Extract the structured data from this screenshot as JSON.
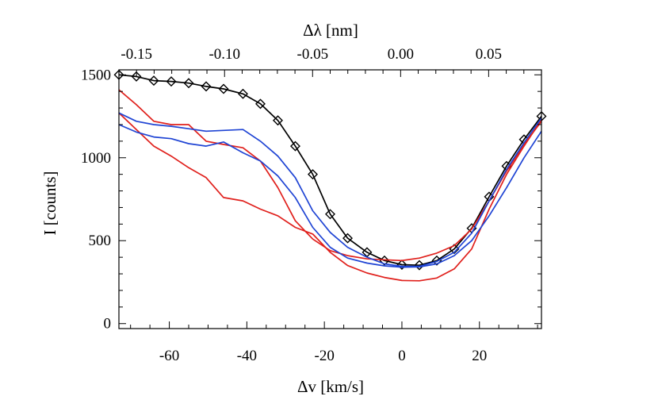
{
  "chart_data": {
    "type": "line",
    "title": "",
    "xlabel": "Δv [km/s]",
    "ylabel": "I [counts]",
    "x2label": "Δλ [nm]",
    "xlim": [
      -73,
      36
    ],
    "ylim": [
      -30,
      1530
    ],
    "x2lim": [
      -0.16,
      0.08
    ],
    "x_ticks": [
      -60,
      -40,
      -20,
      0,
      20
    ],
    "x_tick_labels": [
      "-60",
      "-40",
      "-20",
      "0",
      "20"
    ],
    "y_ticks": [
      0,
      500,
      1000,
      1500
    ],
    "y_tick_labels": [
      "0",
      "500",
      "1000",
      "1500"
    ],
    "x2_ticks": [
      -0.15,
      -0.1,
      -0.05,
      0.0,
      0.05
    ],
    "x2_tick_labels": [
      "-0.15",
      "-0.10",
      "-0.05",
      "0.00",
      "0.05"
    ],
    "grid": false,
    "series": [
      {
        "color": "#000000",
        "marker": "diamond",
        "x": [
          -73,
          -68.5,
          -64,
          -59.5,
          -55,
          -50.5,
          -46,
          -41,
          -36.5,
          -32,
          -27.5,
          -23,
          -18.5,
          -14,
          -9,
          -4.5,
          0,
          4.5,
          9,
          13.5,
          18,
          22.5,
          27,
          31.5,
          36
        ],
        "y": [
          1500,
          1490,
          1465,
          1460,
          1450,
          1430,
          1415,
          1385,
          1325,
          1225,
          1070,
          900,
          660,
          515,
          430,
          380,
          355,
          352,
          380,
          450,
          575,
          765,
          950,
          1110,
          1250
        ]
      },
      {
        "color": "#e0201c",
        "x": [
          -73,
          -68.5,
          -64,
          -59.5,
          -55,
          -50.5,
          -46,
          -41,
          -36.5,
          -32,
          -27.5,
          -23,
          -18.5,
          -14,
          -9,
          -4.5,
          0,
          4.5,
          9,
          13.5,
          18,
          22.5,
          27,
          31.5,
          36
        ],
        "y": [
          1410,
          1320,
          1220,
          1200,
          1200,
          1100,
          1080,
          1060,
          980,
          820,
          620,
          510,
          440,
          410,
          390,
          385,
          380,
          395,
          425,
          470,
          570,
          740,
          920,
          1080,
          1220
        ]
      },
      {
        "color": "#e0201c",
        "x": [
          -73,
          -68.5,
          -64,
          -59.5,
          -55,
          -50.5,
          -46,
          -41,
          -36.5,
          -32,
          -27.5,
          -23,
          -18.5,
          -14,
          -9,
          -4.5,
          0,
          4.5,
          9,
          13.5,
          18,
          22.5,
          27,
          31.5,
          36
        ],
        "y": [
          1270,
          1170,
          1070,
          1010,
          940,
          880,
          760,
          740,
          690,
          650,
          580,
          540,
          430,
          350,
          305,
          278,
          260,
          258,
          275,
          330,
          450,
          690,
          900,
          1070,
          1230
        ]
      },
      {
        "color": "#1f44d4",
        "x": [
          -73,
          -68.5,
          -64,
          -59.5,
          -55,
          -50.5,
          -46,
          -41,
          -36.5,
          -32,
          -27.5,
          -23,
          -18.5,
          -14,
          -9,
          -4.5,
          0,
          4.5,
          9,
          13.5,
          18,
          22.5,
          27,
          31.5,
          36
        ],
        "y": [
          1270,
          1220,
          1200,
          1190,
          1175,
          1160,
          1165,
          1170,
          1100,
          1010,
          880,
          680,
          550,
          460,
          400,
          360,
          345,
          345,
          375,
          430,
          545,
          740,
          930,
          1090,
          1240
        ]
      },
      {
        "color": "#1f44d4",
        "x": [
          -73,
          -68.5,
          -64,
          -59.5,
          -55,
          -50.5,
          -46,
          -41,
          -36.5,
          -32,
          -27.5,
          -23,
          -18.5,
          -14,
          -9,
          -4.5,
          0,
          4.5,
          9,
          13.5,
          18,
          22.5,
          27,
          31.5,
          36
        ],
        "y": [
          1200,
          1155,
          1125,
          1115,
          1085,
          1070,
          1095,
          1030,
          980,
          890,
          760,
          580,
          460,
          395,
          365,
          348,
          340,
          342,
          360,
          410,
          500,
          650,
          820,
          1000,
          1160
        ]
      }
    ]
  }
}
